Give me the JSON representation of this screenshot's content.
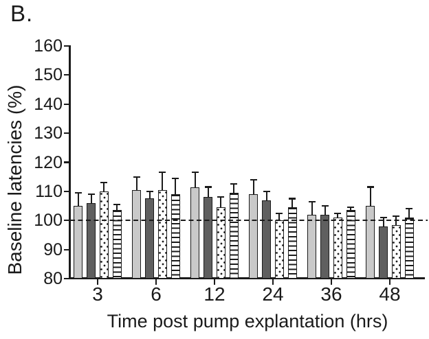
{
  "panel_label": "B.",
  "chart_data": {
    "type": "bar",
    "title": "",
    "xlabel": "Time post pump explantation (hrs)",
    "ylabel": "Baseline latencies (%)",
    "categories": [
      "3",
      "6",
      "12",
      "24",
      "36",
      "48"
    ],
    "y_axis": {
      "min": 80,
      "max": 160,
      "step": 10,
      "tick_labels": [
        "160",
        "150",
        "140",
        "130",
        "120",
        "110",
        "100",
        "90",
        "80"
      ]
    },
    "baseline": {
      "value": 100,
      "style": "dashed"
    },
    "grid": false,
    "legend": {
      "visible": false
    },
    "ink_color": "#1a1a1a",
    "series": [
      {
        "name": "light-gray-bars",
        "pattern": "solid",
        "fill": "#c9c9c9",
        "values": [
          105,
          110.5,
          111.5,
          109,
          102,
          105
        ],
        "errors_up": [
          4.5,
          4.5,
          5,
          5,
          4.5,
          6.5
        ]
      },
      {
        "name": "dark-gray-bars",
        "pattern": "solid",
        "fill": "#5f5f5f",
        "values": [
          106,
          107.5,
          108,
          107,
          102,
          98
        ],
        "errors_up": [
          3,
          2.5,
          3.5,
          3,
          3,
          3
        ]
      },
      {
        "name": "dotted-bars",
        "pattern": "dots",
        "fill": "#ffffff",
        "values": [
          110,
          110.5,
          104.5,
          100,
          101,
          98.5
        ],
        "errors_up": [
          3,
          6,
          3.5,
          2.5,
          1.5,
          3
        ]
      },
      {
        "name": "striped-bars",
        "pattern": "hstripes",
        "fill": "#ffffff",
        "values": [
          103.5,
          109,
          109.5,
          104.5,
          103.5,
          101
        ],
        "errors_up": [
          2,
          5.5,
          3,
          3,
          1,
          3
        ]
      }
    ]
  }
}
